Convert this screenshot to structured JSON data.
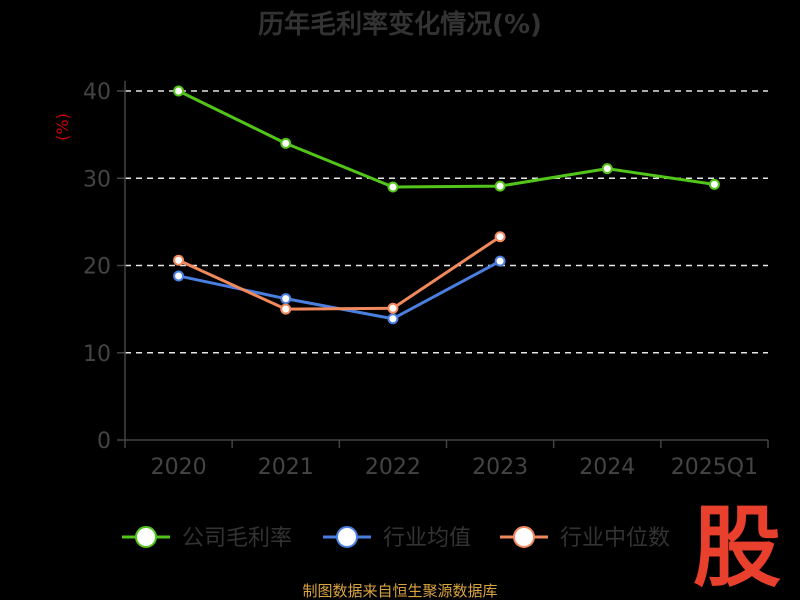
{
  "chart_data": {
    "type": "line",
    "title": "历年毛利率变化情况(%)",
    "ylabel": "(%)",
    "xlabel": "",
    "categories": [
      "2020",
      "2021",
      "2022",
      "2023",
      "2024",
      "2025Q1"
    ],
    "ylim": [
      0,
      40
    ],
    "yticks": [
      0,
      10,
      20,
      30,
      40
    ],
    "grid": true,
    "legend_position": "bottom",
    "series": [
      {
        "name": "公司毛利率",
        "color": "#52c41a",
        "values": [
          40.0,
          34.0,
          29.0,
          29.1,
          31.1,
          29.3
        ]
      },
      {
        "name": "行业均值",
        "color": "#4a7fe0",
        "values": [
          18.8,
          16.2,
          13.9,
          20.5,
          null,
          null
        ]
      },
      {
        "name": "行业中位数",
        "color": "#f08a5d",
        "values": [
          20.6,
          15.0,
          15.1,
          23.3,
          null,
          null
        ]
      }
    ]
  },
  "source_text": "制图数据来自恒生聚源数据库",
  "logo_char": "股"
}
